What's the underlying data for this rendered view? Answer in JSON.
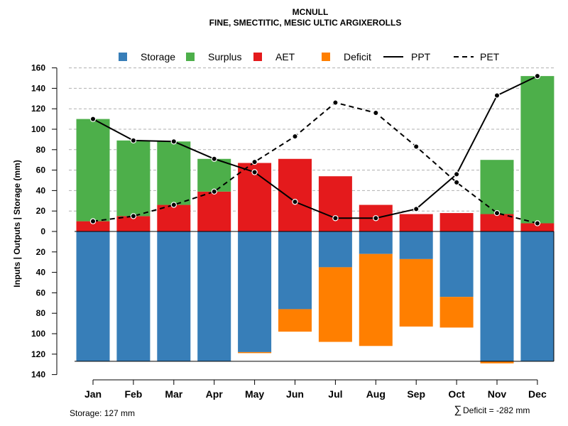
{
  "chart_data": {
    "type": "bar",
    "title": "MCNULL",
    "subtitle": "FINE, SMECTITIC, MESIC ULTIC ARGIXEROLLS",
    "ylabel": "Inputs | Outputs | Storage    (mm)",
    "ylim": [
      -140,
      160
    ],
    "yticks": [
      160,
      140,
      120,
      100,
      80,
      60,
      40,
      20,
      0,
      -20,
      -40,
      -60,
      -80,
      -100,
      -120,
      -140
    ],
    "ytick_labels": [
      "160",
      "140",
      "120",
      "100",
      "80",
      "60",
      "40",
      "20",
      "0",
      "20",
      "40",
      "60",
      "80",
      "100",
      "120",
      "140"
    ],
    "categories": [
      "Jan",
      "Feb",
      "Mar",
      "Apr",
      "May",
      "Jun",
      "Jul",
      "Aug",
      "Sep",
      "Oct",
      "Nov",
      "Dec"
    ],
    "storage_capacity": 127,
    "series": [
      {
        "name": "Storage",
        "color": "#377EB8",
        "kind": "bar-below",
        "values": [
          127,
          127,
          127,
          127,
          118,
          76,
          35,
          22,
          27,
          64,
          127,
          127
        ]
      },
      {
        "name": "Surplus",
        "color": "#4DAF4A",
        "kind": "bar-above-stacked",
        "values": [
          100,
          74,
          62,
          32,
          0,
          0,
          0,
          0,
          0,
          0,
          53,
          144
        ]
      },
      {
        "name": "AET",
        "color": "#E41A1C",
        "kind": "bar-above",
        "values": [
          10,
          15,
          26,
          39,
          67,
          71,
          54,
          26,
          17,
          18,
          17,
          8
        ]
      },
      {
        "name": "Deficit",
        "color": "#FF7F00",
        "kind": "bar-below-stacked",
        "values": [
          0,
          0,
          0,
          0,
          1,
          22,
          73,
          90,
          66,
          30,
          2,
          0
        ]
      },
      {
        "name": "PPT",
        "color": "#000000",
        "kind": "line-solid",
        "values": [
          110,
          89,
          88,
          71,
          58,
          29,
          13,
          13,
          22,
          56,
          133,
          152
        ]
      },
      {
        "name": "PET",
        "color": "#000000",
        "kind": "line-dashed",
        "values": [
          10,
          15,
          26,
          39,
          68,
          93,
          126,
          116,
          83,
          48,
          18,
          8
        ]
      }
    ],
    "legend": [
      "Storage",
      "Surplus",
      "AET",
      "Deficit",
      "PPT",
      "PET"
    ],
    "legend_position": "top",
    "grid": "horizontal-dashed"
  },
  "footer": {
    "storage": "Storage: 127 mm",
    "deficit_symbol": "∑",
    "deficit": "Deficit = -282 mm"
  }
}
